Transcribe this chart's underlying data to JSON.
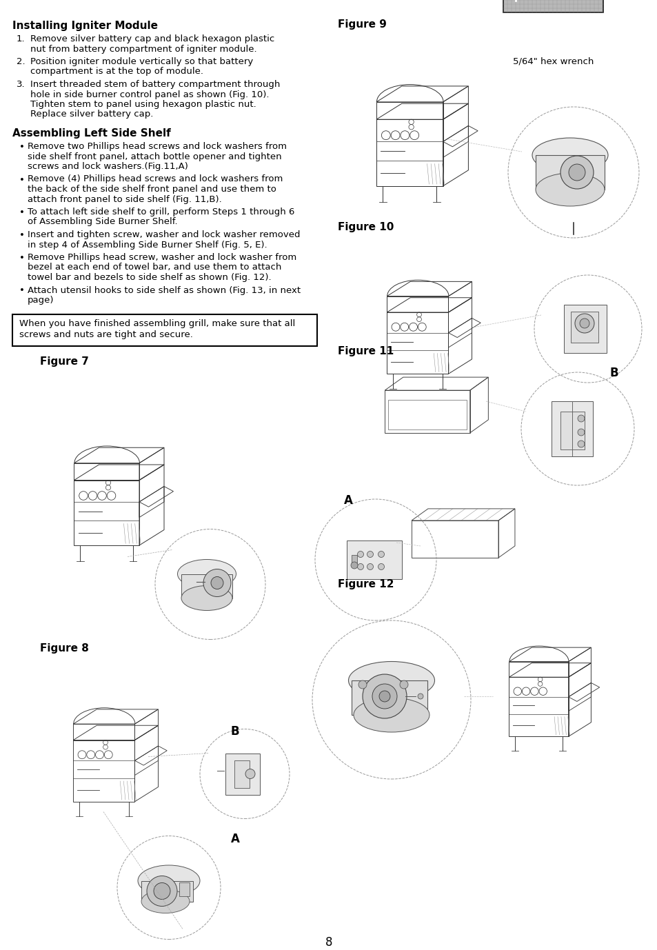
{
  "bg_color": "#ffffff",
  "page_number": "8",
  "title1": "Installing Igniter Module",
  "numbered_items": [
    [
      "Remove silver battery cap and black hexagon plastic",
      "nut from battery compartment of igniter module."
    ],
    [
      "Position igniter module vertically so that battery",
      "compartment is at the top of module."
    ],
    [
      "Insert threaded stem of battery compartment through",
      "hole in side burner control panel as shown (Fig. 10).",
      "Tighten stem to panel using hexagon plastic nut.",
      "Replace silver battery cap."
    ]
  ],
  "title2": "Assembling Left Side Shelf",
  "bullet_items": [
    [
      "Remove two Phillips head screws and lock washers from",
      "side shelf front panel, attach bottle opener and tighten",
      "screws and lock washers.(Fig.11,A)"
    ],
    [
      "Remove (4) Phillips head screws and lock washers from",
      "the back of the side shelf front panel and use them to",
      "attach front panel to side shelf (Fig. 11,B)."
    ],
    [
      "To attach left side shelf to grill, perform Steps 1 through 6",
      "of Assembling Side Burner Shelf."
    ],
    [
      "Insert and tighten screw, washer and lock washer removed",
      "in step 4 of Assembling Side Burner Shelf (Fig. 5, E)."
    ],
    [
      "Remove Phillips head screw, washer and lock washer from",
      "bezel at each end of towel bar, and use them to attach",
      "towel bar and bezels to side shelf as shown (Fig. 12)."
    ],
    [
      "Attach utensil hooks to side shelf as shown (Fig. 13, in next",
      "page)"
    ]
  ],
  "notice": "When you have finished assembling grill, make sure that all\nscrews and nuts are tight and secure.",
  "fig7_label": "Figure 7",
  "fig8_label": "Figure 8",
  "fig9_label": "Figure 9",
  "fig10_label": "Figure 10",
  "fig11_label": "Figure 11",
  "fig12_label": "Figure 12",
  "hex_wrench_label": "5/64\" hex wrench",
  "text_fontsize": 9.5,
  "title_fontsize": 11,
  "fig_label_fontsize": 11,
  "AB_fontsize": 12
}
